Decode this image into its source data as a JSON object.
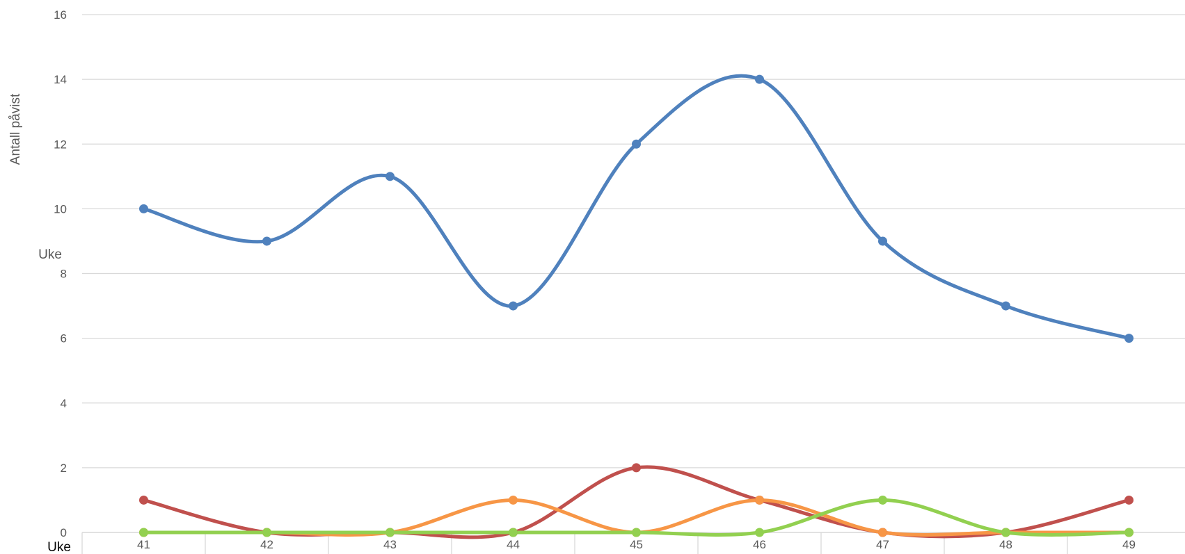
{
  "chart_data": {
    "type": "line",
    "title": "",
    "ylabel": "Antall påvist",
    "xlabel_left": "Uke",
    "xlabel_bottom": "Uke",
    "categories": [
      "41",
      "42",
      "43",
      "44",
      "45",
      "46",
      "47",
      "48",
      "49"
    ],
    "ylim": [
      0,
      16
    ],
    "yticks": [
      "0",
      "2",
      "4",
      "6",
      "8",
      "10",
      "12",
      "14",
      "16"
    ],
    "grid": true,
    "smooth": true,
    "legend": "none",
    "series": [
      {
        "color": "#4f81bd",
        "values": [
          10,
          9,
          11,
          7,
          12,
          14,
          9,
          7,
          6
        ]
      },
      {
        "color": "#c0504d",
        "values": [
          1,
          0,
          0,
          0,
          2,
          1,
          0,
          0,
          1
        ]
      },
      {
        "color": "#f79646",
        "values": [
          0,
          0,
          0,
          1,
          0,
          1,
          0,
          0,
          0
        ]
      },
      {
        "color": "#92d050",
        "values": [
          0,
          0,
          0,
          0,
          0,
          0,
          1,
          0,
          0
        ]
      }
    ]
  }
}
